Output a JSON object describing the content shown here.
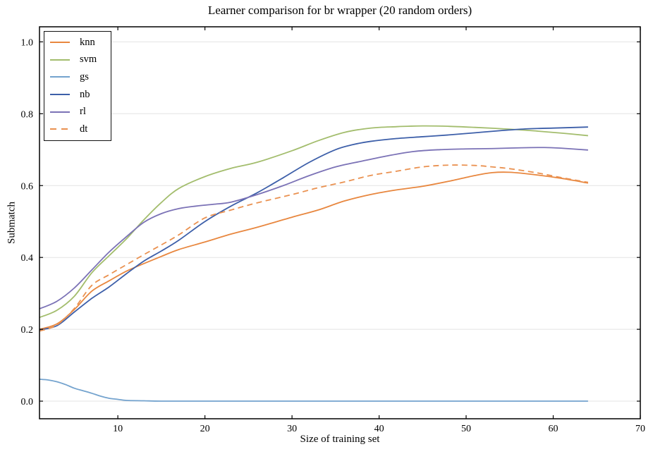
{
  "style": {
    "background": "#ffffff",
    "grid_color": "#e3e3e3",
    "spine_color": "#000000",
    "text_color": "#000000"
  },
  "chart_data": {
    "type": "line",
    "title": "Learner comparison for br wrapper (20 random orders)",
    "xlabel": "Size of training set",
    "ylabel": "Submatch",
    "xlim": [
      1,
      70
    ],
    "ylim": [
      -0.049,
      1.042
    ],
    "xticks": [
      10,
      20,
      30,
      40,
      50,
      60,
      70
    ],
    "xtick_labels": [
      "10",
      "20",
      "30",
      "40",
      "50",
      "60",
      "70"
    ],
    "yticks": [
      0.0,
      0.2,
      0.4,
      0.6,
      0.8,
      1.0
    ],
    "ytick_labels": [
      "0.0",
      "0.2",
      "0.4",
      "0.6",
      "0.8",
      "1.0"
    ],
    "grid": "horizontal",
    "legend_position": "upper-left",
    "series": [
      {
        "name": "knn",
        "color": "#e8873f",
        "linestyle": "solid",
        "points": [
          [
            1,
            0.2
          ],
          [
            3,
            0.215
          ],
          [
            5,
            0.255
          ],
          [
            7,
            0.306
          ],
          [
            9,
            0.335
          ],
          [
            11,
            0.362
          ],
          [
            13,
            0.383
          ],
          [
            15,
            0.403
          ],
          [
            17,
            0.422
          ],
          [
            20,
            0.443
          ],
          [
            23,
            0.465
          ],
          [
            26,
            0.484
          ],
          [
            30,
            0.512
          ],
          [
            33,
            0.532
          ],
          [
            36,
            0.557
          ],
          [
            39,
            0.575
          ],
          [
            42,
            0.588
          ],
          [
            45,
            0.598
          ],
          [
            48,
            0.612
          ],
          [
            51,
            0.628
          ],
          [
            53,
            0.636
          ],
          [
            55,
            0.637
          ],
          [
            58,
            0.63
          ],
          [
            61,
            0.62
          ],
          [
            64,
            0.607
          ]
        ]
      },
      {
        "name": "svm",
        "color": "#a3bd6d",
        "linestyle": "solid",
        "points": [
          [
            1,
            0.233
          ],
          [
            3,
            0.253
          ],
          [
            5,
            0.292
          ],
          [
            7,
            0.357
          ],
          [
            9,
            0.405
          ],
          [
            11,
            0.452
          ],
          [
            13,
            0.505
          ],
          [
            15,
            0.553
          ],
          [
            17,
            0.592
          ],
          [
            20,
            0.625
          ],
          [
            23,
            0.648
          ],
          [
            26,
            0.665
          ],
          [
            30,
            0.697
          ],
          [
            33,
            0.725
          ],
          [
            36,
            0.748
          ],
          [
            39,
            0.76
          ],
          [
            42,
            0.764
          ],
          [
            45,
            0.766
          ],
          [
            48,
            0.765
          ],
          [
            51,
            0.762
          ],
          [
            55,
            0.757
          ],
          [
            58,
            0.752
          ],
          [
            61,
            0.746
          ],
          [
            64,
            0.739
          ]
        ]
      },
      {
        "name": "gs",
        "color": "#74a3ce",
        "linestyle": "solid",
        "points": [
          [
            1,
            0.061
          ],
          [
            2,
            0.059
          ],
          [
            3,
            0.054
          ],
          [
            4,
            0.046
          ],
          [
            5,
            0.036
          ],
          [
            6,
            0.029
          ],
          [
            7,
            0.022
          ],
          [
            8,
            0.014
          ],
          [
            9,
            0.008
          ],
          [
            10,
            0.005
          ],
          [
            11,
            0.002
          ],
          [
            13,
            0.001
          ],
          [
            15,
            0.0
          ],
          [
            20,
            0.0
          ],
          [
            30,
            0.0
          ],
          [
            40,
            0.0
          ],
          [
            50,
            0.0
          ],
          [
            60,
            0.0
          ],
          [
            64,
            0.0
          ]
        ]
      },
      {
        "name": "nb",
        "color": "#3d5fa9",
        "linestyle": "solid",
        "points": [
          [
            1,
            0.198
          ],
          [
            3,
            0.21
          ],
          [
            5,
            0.248
          ],
          [
            7,
            0.286
          ],
          [
            9,
            0.318
          ],
          [
            11,
            0.355
          ],
          [
            13,
            0.39
          ],
          [
            15,
            0.418
          ],
          [
            17,
            0.448
          ],
          [
            20,
            0.5
          ],
          [
            23,
            0.543
          ],
          [
            26,
            0.58
          ],
          [
            29,
            0.622
          ],
          [
            32,
            0.665
          ],
          [
            35,
            0.7
          ],
          [
            37,
            0.714
          ],
          [
            39,
            0.723
          ],
          [
            42,
            0.731
          ],
          [
            45,
            0.736
          ],
          [
            48,
            0.741
          ],
          [
            51,
            0.747
          ],
          [
            54,
            0.753
          ],
          [
            57,
            0.758
          ],
          [
            60,
            0.76
          ],
          [
            64,
            0.763
          ]
        ]
      },
      {
        "name": "rl",
        "color": "#7b72b6",
        "linestyle": "solid",
        "points": [
          [
            1,
            0.257
          ],
          [
            3,
            0.278
          ],
          [
            5,
            0.315
          ],
          [
            7,
            0.365
          ],
          [
            9,
            0.415
          ],
          [
            11,
            0.458
          ],
          [
            13,
            0.498
          ],
          [
            15,
            0.522
          ],
          [
            17,
            0.536
          ],
          [
            19,
            0.543
          ],
          [
            21,
            0.548
          ],
          [
            23,
            0.554
          ],
          [
            26,
            0.575
          ],
          [
            29,
            0.6
          ],
          [
            32,
            0.628
          ],
          [
            35,
            0.652
          ],
          [
            38,
            0.668
          ],
          [
            41,
            0.683
          ],
          [
            44,
            0.695
          ],
          [
            47,
            0.7
          ],
          [
            50,
            0.702
          ],
          [
            53,
            0.703
          ],
          [
            56,
            0.705
          ],
          [
            59,
            0.706
          ],
          [
            61,
            0.704
          ],
          [
            64,
            0.699
          ]
        ]
      },
      {
        "name": "dt",
        "color": "#ea9150",
        "linestyle": "dashed",
        "points": [
          [
            1,
            0.195
          ],
          [
            3,
            0.212
          ],
          [
            5,
            0.258
          ],
          [
            7,
            0.322
          ],
          [
            9,
            0.352
          ],
          [
            11,
            0.38
          ],
          [
            13,
            0.408
          ],
          [
            15,
            0.435
          ],
          [
            17,
            0.463
          ],
          [
            20,
            0.51
          ],
          [
            23,
            0.532
          ],
          [
            26,
            0.552
          ],
          [
            30,
            0.575
          ],
          [
            33,
            0.594
          ],
          [
            36,
            0.61
          ],
          [
            39,
            0.628
          ],
          [
            42,
            0.64
          ],
          [
            45,
            0.652
          ],
          [
            48,
            0.657
          ],
          [
            51,
            0.656
          ],
          [
            53,
            0.652
          ],
          [
            55,
            0.647
          ],
          [
            58,
            0.636
          ],
          [
            61,
            0.622
          ],
          [
            64,
            0.609
          ]
        ]
      }
    ]
  }
}
